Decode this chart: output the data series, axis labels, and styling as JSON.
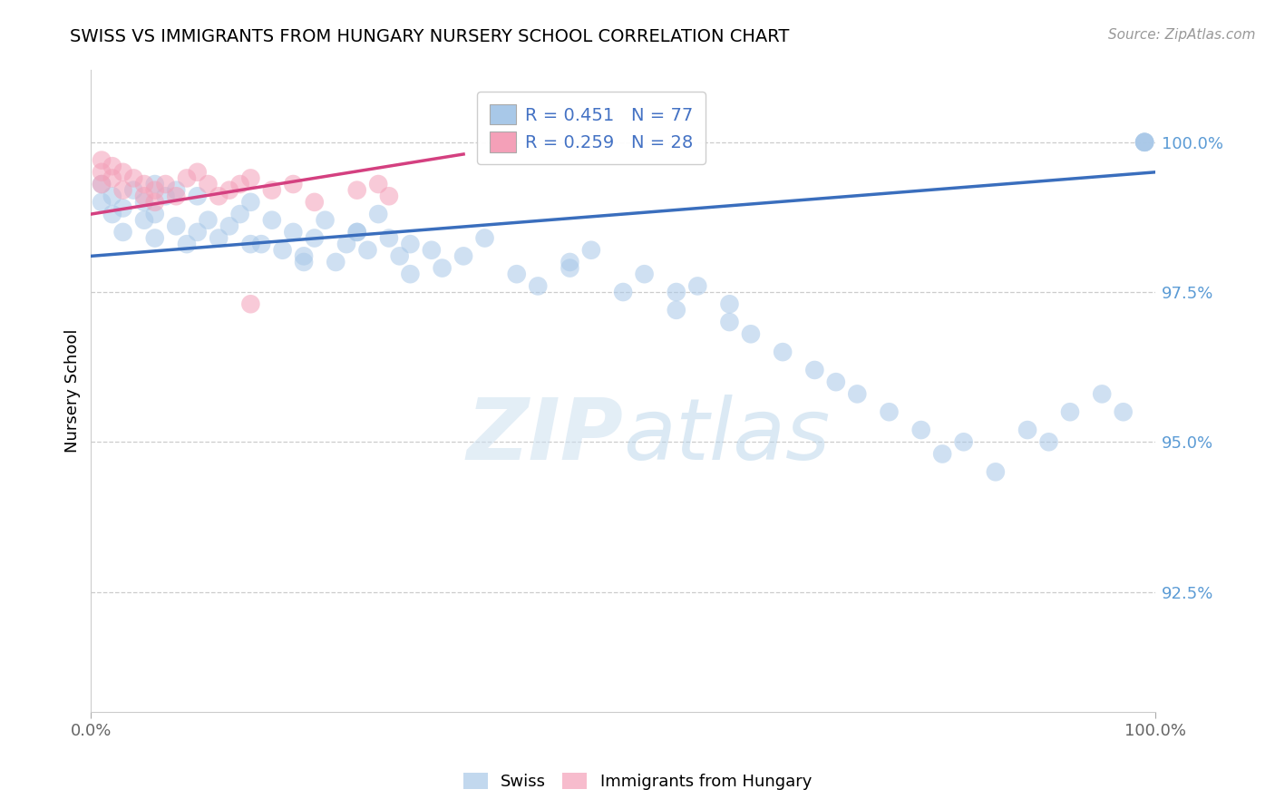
{
  "title": "SWISS VS IMMIGRANTS FROM HUNGARY NURSERY SCHOOL CORRELATION CHART",
  "source": "Source: ZipAtlas.com",
  "ylabel": "Nursery School",
  "xlim": [
    0,
    100
  ],
  "ylim": [
    90.5,
    101.2
  ],
  "yticks": [
    92.5,
    95.0,
    97.5,
    100.0
  ],
  "ytick_labels": [
    "92.5%",
    "95.0%",
    "97.5%",
    "100.0%"
  ],
  "xticks": [
    0,
    100
  ],
  "xtick_labels": [
    "0.0%",
    "100.0%"
  ],
  "blue_R": 0.451,
  "blue_N": 77,
  "pink_R": 0.259,
  "pink_N": 28,
  "blue_color": "#a8c8e8",
  "pink_color": "#f4a0b8",
  "blue_line_color": "#3a6ebd",
  "pink_line_color": "#d44080",
  "legend_label_swiss": "Swiss",
  "legend_label_hungary": "Immigrants from Hungary",
  "blue_scatter_x": [
    1,
    1,
    2,
    2,
    3,
    3,
    4,
    5,
    5,
    6,
    6,
    7,
    8,
    9,
    10,
    11,
    12,
    13,
    14,
    15,
    16,
    17,
    18,
    19,
    20,
    21,
    22,
    23,
    24,
    25,
    26,
    27,
    28,
    29,
    30,
    32,
    33,
    35,
    37,
    40,
    42,
    45,
    47,
    50,
    52,
    55,
    57,
    60,
    62,
    65,
    68,
    70,
    72,
    75,
    78,
    80,
    82,
    85,
    88,
    90,
    92,
    95,
    97,
    99,
    99,
    99,
    99,
    15,
    20,
    25,
    30,
    10,
    8,
    45,
    6,
    55,
    60
  ],
  "blue_scatter_y": [
    99.0,
    99.3,
    98.8,
    99.1,
    98.5,
    98.9,
    99.2,
    98.7,
    99.0,
    98.4,
    98.8,
    99.1,
    98.6,
    98.3,
    98.5,
    98.7,
    98.4,
    98.6,
    98.8,
    99.0,
    98.3,
    98.7,
    98.2,
    98.5,
    98.1,
    98.4,
    98.7,
    98.0,
    98.3,
    98.5,
    98.2,
    98.8,
    98.4,
    98.1,
    98.3,
    98.2,
    97.9,
    98.1,
    98.4,
    97.8,
    97.6,
    97.9,
    98.2,
    97.5,
    97.8,
    97.2,
    97.6,
    97.0,
    96.8,
    96.5,
    96.2,
    96.0,
    95.8,
    95.5,
    95.2,
    94.8,
    95.0,
    94.5,
    95.2,
    95.0,
    95.5,
    95.8,
    95.5,
    100.0,
    100.0,
    100.0,
    100.0,
    98.3,
    98.0,
    98.5,
    97.8,
    99.1,
    99.2,
    98.0,
    99.3,
    97.5,
    97.3
  ],
  "pink_scatter_x": [
    1,
    1,
    1,
    2,
    2,
    3,
    3,
    4,
    5,
    5,
    6,
    6,
    7,
    8,
    9,
    10,
    11,
    12,
    13,
    14,
    15,
    17,
    19,
    21,
    25,
    27,
    28,
    15
  ],
  "pink_scatter_y": [
    99.5,
    99.7,
    99.3,
    99.4,
    99.6,
    99.2,
    99.5,
    99.4,
    99.1,
    99.3,
    99.0,
    99.2,
    99.3,
    99.1,
    99.4,
    99.5,
    99.3,
    99.1,
    99.2,
    99.3,
    99.4,
    99.2,
    99.3,
    99.0,
    99.2,
    99.3,
    99.1,
    97.3
  ],
  "blue_trend_x": [
    0,
    100
  ],
  "blue_trend_y": [
    98.1,
    99.5
  ],
  "pink_trend_x": [
    0,
    35
  ],
  "pink_trend_y": [
    98.8,
    99.8
  ]
}
